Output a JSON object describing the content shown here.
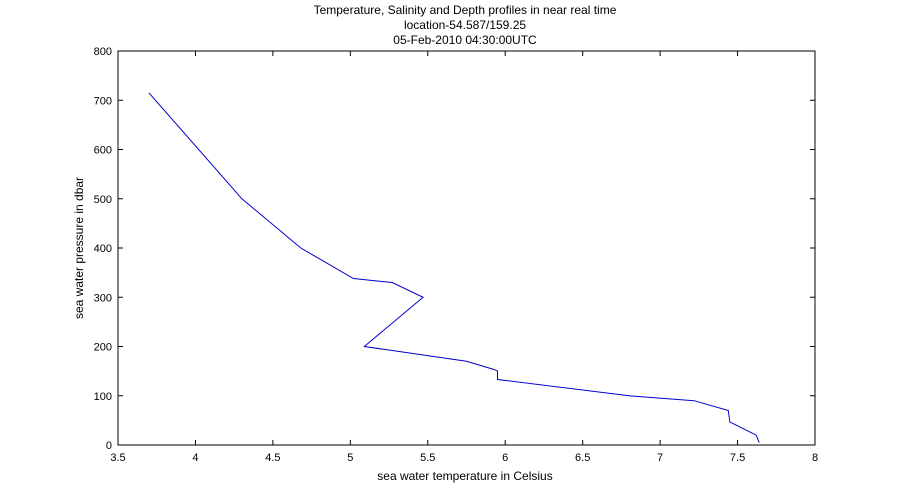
{
  "chart_data": {
    "type": "line",
    "title": [
      "Temperature, Salinity and Depth profiles in near real time",
      "location-54.587/159.25",
      "05-Feb-2010 04:30:00UTC"
    ],
    "xlabel": "sea water temperature in Celsius",
    "ylabel": "sea water pressure in dbar",
    "xlim": [
      3.5,
      8
    ],
    "ylim": [
      0,
      800
    ],
    "xticks": [
      3.5,
      4,
      4.5,
      5,
      5.5,
      6,
      6.5,
      7,
      7.5,
      8
    ],
    "xtick_labels": [
      "3.5",
      "4",
      "4.5",
      "5",
      "5.5",
      "6",
      "6.5",
      "7",
      "7.5",
      "8"
    ],
    "yticks": [
      0,
      100,
      200,
      300,
      400,
      500,
      600,
      700,
      800
    ],
    "ytick_labels": [
      "0",
      "100",
      "200",
      "300",
      "400",
      "500",
      "600",
      "700",
      "800"
    ],
    "grid": false,
    "line_color": "#0000cc",
    "series": [
      {
        "x": [
          7.64,
          7.62,
          7.45,
          7.44,
          7.22,
          6.8,
          5.95,
          5.95,
          5.93,
          5.75,
          5.09,
          5.47,
          5.27,
          5.02,
          4.68,
          4.3,
          3.7
        ],
        "y": [
          5,
          20,
          47,
          70,
          90,
          100,
          133,
          150,
          153,
          170,
          200,
          300,
          330,
          338,
          400,
          500,
          715
        ]
      }
    ]
  }
}
